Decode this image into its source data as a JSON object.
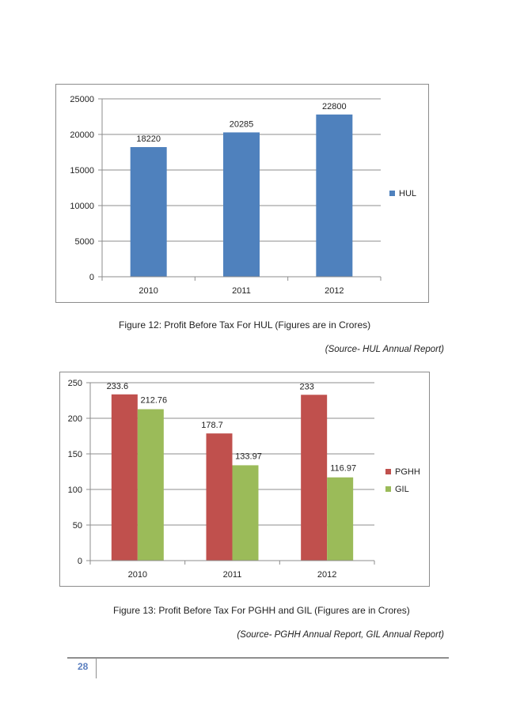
{
  "chart_data": [
    {
      "type": "bar",
      "categories": [
        "2010",
        "2011",
        "2012"
      ],
      "series": [
        {
          "name": "HUL",
          "values": [
            18220,
            20285,
            22800
          ],
          "color": "#4f81bd"
        }
      ],
      "yticks": [
        0,
        5000,
        10000,
        15000,
        20000,
        25000
      ],
      "ylim": [
        0,
        25000
      ],
      "legend": "right",
      "grid": true
    },
    {
      "type": "bar",
      "categories": [
        "2010",
        "2011",
        "2012"
      ],
      "series": [
        {
          "name": "PGHH",
          "values": [
            233.6,
            178.7,
            233
          ],
          "color": "#c0504d"
        },
        {
          "name": "GIL",
          "values": [
            212.76,
            133.97,
            116.97
          ],
          "color": "#9bbb59"
        }
      ],
      "yticks": [
        0,
        50,
        100,
        150,
        200,
        250
      ],
      "ylim": [
        0,
        250
      ],
      "legend": "right",
      "grid": true
    }
  ],
  "captions": {
    "fig12": "Figure 12: Profit Before Tax For HUL (Figures are in Crores)",
    "fig12_source": "(Source- HUL Annual Report)",
    "fig13": "Figure 13: Profit Before Tax For PGHH and GIL (Figures are in Crores)",
    "fig13_source": "(Source- PGHH Annual Report, GIL Annual Report)"
  },
  "footer": {
    "page_number": "28"
  }
}
